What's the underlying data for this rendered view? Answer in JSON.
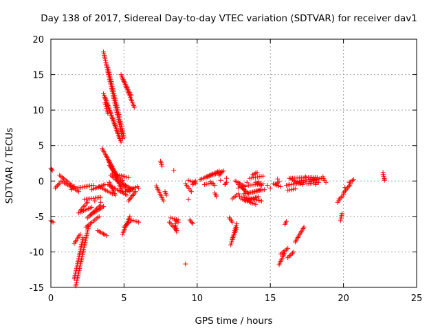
{
  "chart_data": {
    "type": "scatter",
    "title": "Day 138 of 2017, Sidereal Day-to-day VTEC variation (SDTVAR) for receiver dav1",
    "xlabel": "GPS time / hours",
    "ylabel": "SDTVAR / TECUs",
    "xlim": [
      0,
      25
    ],
    "ylim": [
      -15,
      20
    ],
    "x_ticks": [
      0,
      5,
      10,
      15,
      20,
      25
    ],
    "y_ticks": [
      -15,
      -10,
      -5,
      0,
      5,
      10,
      15,
      20
    ],
    "grid": true,
    "marker": "+",
    "color": "#ff0000",
    "segments": [
      [
        0.0,
        1.8,
        0.1,
        1.5
      ],
      [
        0.0,
        -5.6,
        0.15,
        -5.8
      ],
      [
        0.3,
        -1.0,
        0.6,
        -0.3
      ],
      [
        0.6,
        0.8,
        1.6,
        -0.9
      ],
      [
        0.7,
        0.0,
        1.9,
        -1.5
      ],
      [
        1.8,
        -1.0,
        2.9,
        -0.6
      ],
      [
        1.6,
        -13.8,
        2.2,
        -8.0
      ],
      [
        1.7,
        -14.8,
        2.6,
        -6.2
      ],
      [
        1.6,
        -8.8,
        2.0,
        -7.5
      ],
      [
        1.9,
        -4.5,
        2.8,
        -3.7
      ],
      [
        2.0,
        -4.2,
        2.5,
        -3.0
      ],
      [
        2.3,
        -2.6,
        3.4,
        -2.3
      ],
      [
        2.4,
        -6.5,
        3.3,
        -5.0
      ],
      [
        2.5,
        -5.2,
        3.4,
        -3.4
      ],
      [
        2.7,
        -4.8,
        3.6,
        -3.6
      ],
      [
        2.8,
        -1.2,
        3.7,
        -0.5
      ],
      [
        3.2,
        -7.0,
        3.8,
        -7.7
      ],
      [
        3.3,
        -0.8,
        4.2,
        -1.8
      ],
      [
        3.6,
        18.2,
        4.9,
        6.0
      ],
      [
        3.9,
        16.0,
        5.0,
        6.2
      ],
      [
        3.6,
        12.3,
        4.7,
        6.0
      ],
      [
        3.7,
        11.8,
        4.8,
        5.5
      ],
      [
        3.7,
        11.0,
        3.9,
        9.5
      ],
      [
        3.5,
        4.6,
        4.6,
        0.5
      ],
      [
        3.8,
        3.5,
        4.9,
        -1.5
      ],
      [
        4.0,
        2.2,
        5.0,
        -0.5
      ],
      [
        4.2,
        1.0,
        5.3,
        0.5
      ],
      [
        3.9,
        -0.5,
        5.2,
        -2.0
      ],
      [
        4.1,
        0.8,
        5.4,
        -1.5
      ],
      [
        4.0,
        -0.2,
        4.4,
        -2.0
      ],
      [
        4.8,
        15.0,
        5.7,
        10.4
      ],
      [
        4.9,
        14.5,
        5.5,
        12.0
      ],
      [
        4.9,
        -7.5,
        5.4,
        -5.0
      ],
      [
        5.0,
        -6.5,
        5.5,
        -5.5
      ],
      [
        5.1,
        -1.5,
        5.9,
        -0.8
      ],
      [
        5.0,
        -0.5,
        5.6,
        -1.2
      ],
      [
        5.3,
        -2.8,
        5.8,
        -1.5
      ],
      [
        5.5,
        -5.5,
        6.0,
        -5.8
      ],
      [
        7.2,
        -0.7,
        7.7,
        -2.8
      ],
      [
        7.5,
        2.8,
        7.6,
        2.1
      ],
      [
        7.8,
        -1.5,
        7.9,
        -2.0
      ],
      [
        8.1,
        -5.8,
        8.6,
        -7.0
      ],
      [
        8.2,
        -5.2,
        8.7,
        -5.5
      ],
      [
        8.5,
        -6.0,
        8.6,
        -7.2
      ],
      [
        8.5,
        -5.6,
        8.7,
        -5.8
      ],
      [
        9.2,
        -0.4,
        9.6,
        -1.5
      ],
      [
        9.4,
        0.1,
        9.9,
        -0.3
      ],
      [
        9.5,
        -5.5,
        9.7,
        -6.0
      ],
      [
        9.7,
        -0.5,
        9.9,
        0.0
      ],
      [
        10.2,
        0.2,
        11.5,
        1.4
      ],
      [
        10.5,
        -0.5,
        11.0,
        -0.3
      ],
      [
        10.7,
        0.6,
        11.8,
        1.4
      ],
      [
        10.9,
        -0.1,
        11.2,
        -0.6
      ],
      [
        11.2,
        -1.7,
        11.3,
        -2.2
      ],
      [
        11.5,
        0.8,
        11.7,
        1.3
      ],
      [
        11.9,
        -0.5,
        12.0,
        -0.2
      ],
      [
        12.2,
        -5.2,
        12.4,
        -5.8
      ],
      [
        12.3,
        -9.0,
        12.7,
        -6.0
      ],
      [
        12.4,
        -8.2,
        12.7,
        -6.6
      ],
      [
        12.4,
        -2.5,
        12.8,
        -1.8
      ],
      [
        12.6,
        0.0,
        13.3,
        -0.8
      ],
      [
        12.9,
        -2.2,
        14.4,
        -2.8
      ],
      [
        12.8,
        -0.5,
        13.2,
        -1.2
      ],
      [
        13.0,
        -2.5,
        14.0,
        -3.3
      ],
      [
        13.0,
        -0.8,
        13.5,
        -1.8
      ],
      [
        13.2,
        -1.8,
        14.6,
        -1.2
      ],
      [
        13.3,
        -2.8,
        14.2,
        -2.2
      ],
      [
        13.5,
        -0.6,
        14.5,
        -0.4
      ],
      [
        13.6,
        0.4,
        14.5,
        0.7
      ],
      [
        13.8,
        -1.6,
        14.3,
        -1.2
      ],
      [
        13.8,
        0.9,
        14.1,
        1.2
      ],
      [
        14.0,
        -0.2,
        14.4,
        -0.6
      ],
      [
        15.2,
        -0.4,
        15.7,
        -0.8
      ],
      [
        15.4,
        -0.4,
        15.6,
        -0.1
      ],
      [
        15.6,
        -11.8,
        16.0,
        -10.0
      ],
      [
        15.7,
        -10.3,
        16.2,
        -9.5
      ],
      [
        16.0,
        -6.1,
        16.1,
        -5.7
      ],
      [
        16.1,
        -0.6,
        17.5,
        -0.1
      ],
      [
        16.2,
        -10.8,
        16.6,
        -10.0
      ],
      [
        16.2,
        -1.3,
        16.7,
        -1.1
      ],
      [
        16.3,
        0.4,
        17.2,
        -0.5
      ],
      [
        16.4,
        0.4,
        18.2,
        0.5
      ],
      [
        16.7,
        -8.6,
        17.3,
        -6.5
      ],
      [
        17.0,
        0.0,
        18.0,
        0.3
      ],
      [
        17.5,
        -0.4,
        18.3,
        -0.2
      ],
      [
        17.7,
        -0.1,
        18.5,
        0.4
      ],
      [
        18.6,
        0.6,
        18.7,
        0.1
      ],
      [
        19.8,
        -5.6,
        19.9,
        -4.6
      ],
      [
        19.6,
        -3.0,
        20.0,
        -1.9
      ],
      [
        20.0,
        -1.7,
        20.5,
        -0.4
      ],
      [
        20.4,
        -0.2,
        20.7,
        0.2
      ],
      [
        22.7,
        1.2,
        22.8,
        0.1
      ]
    ],
    "points": [
      [
        1.4,
        -1.2
      ],
      [
        1.6,
        -0.8
      ],
      [
        3.0,
        -2.8
      ],
      [
        3.4,
        -3.0
      ],
      [
        4.9,
        0.1
      ],
      [
        5.1,
        -0.7
      ],
      [
        6.0,
        -1.0
      ],
      [
        8.4,
        1.5
      ],
      [
        9.2,
        -11.7
      ],
      [
        9.4,
        -2.6
      ],
      [
        11.3,
        -2.0
      ],
      [
        11.6,
        0.1
      ],
      [
        12.0,
        0.4
      ],
      [
        12.8,
        -1.0
      ],
      [
        13.4,
        -0.2
      ],
      [
        14.2,
        -0.1
      ],
      [
        14.8,
        -0.6
      ],
      [
        15.0,
        -1.0
      ],
      [
        15.5,
        0.3
      ],
      [
        17.4,
        0.6
      ],
      [
        18.1,
        -0.5
      ],
      [
        18.8,
        -0.2
      ],
      [
        19.7,
        -2.5
      ],
      [
        20.1,
        -0.9
      ],
      [
        22.7,
        0.9
      ],
      [
        22.8,
        0.3
      ]
    ]
  }
}
